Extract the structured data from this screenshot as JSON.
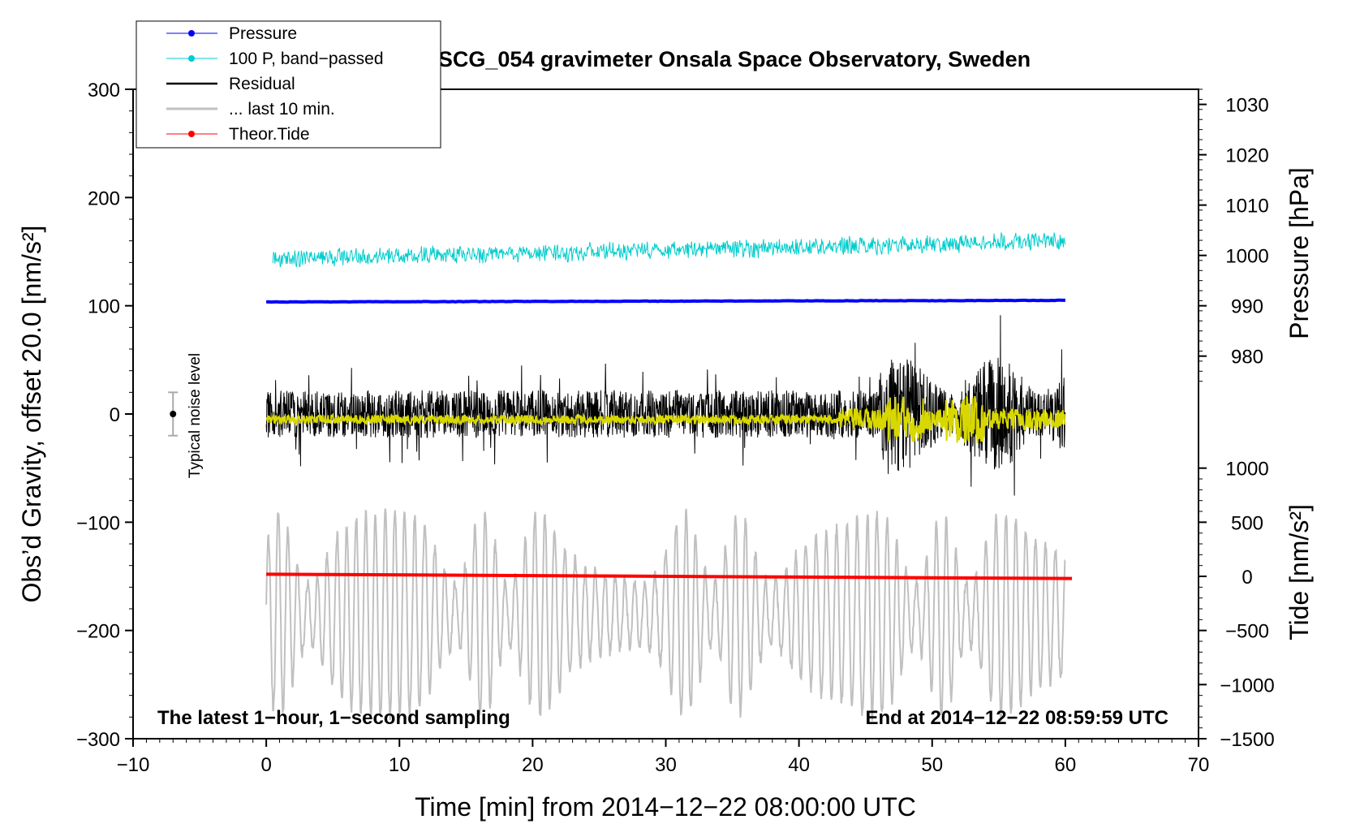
{
  "chart_data": {
    "type": "line",
    "title": "SCG_054 gravimeter Onsala Space Observatory, Sweden",
    "xlabel": "Time [min] from 2014−12−22 08:00:00 UTC",
    "ylabel_left": "Obs’d Gravity, offset 20.0 [nm/s²]",
    "ylabel_right_pressure": "Pressure [hPa]",
    "ylabel_right_tide": "Tide [nm/s²]",
    "xlim": [
      -10,
      70
    ],
    "ylim_left": [
      -300,
      300
    ],
    "xticks": [
      "−10",
      "0",
      "10",
      "20",
      "30",
      "40",
      "50",
      "60",
      "70"
    ],
    "yticks_left": [
      "−300",
      "−200",
      "−100",
      "0",
      "100",
      "200",
      "300"
    ],
    "yticks_pressure": [
      "980",
      "990",
      "1000",
      "1010",
      "1020",
      "1030"
    ],
    "yticks_tide": [
      "−1500",
      "−1000",
      "−500",
      "0",
      "500",
      "1000"
    ],
    "annotations": {
      "left": "The latest 1−hour, 1−second sampling",
      "right": "End at 2014−12−22 08:59:59 UTC",
      "noise": "Typical noise level"
    },
    "legend": [
      {
        "label": "Pressure",
        "color": "#0000ff",
        "marker": true
      },
      {
        "label": "100 P, band−passed",
        "color": "#00cccc",
        "marker": true
      },
      {
        "label": "Residual",
        "color": "#000000",
        "marker": false
      },
      {
        "label": "... last 10 min.",
        "color": "#c0c0c0",
        "marker": false
      },
      {
        "label": "Theor.Tide",
        "color": "#ff0000",
        "marker": true
      }
    ],
    "series": [
      {
        "name": "Pressure",
        "axis": "left_equiv",
        "color": "#0000ff",
        "start": 103.5,
        "end": 105,
        "x_range": [
          0,
          60
        ]
      },
      {
        "name": "100 P, band-passed",
        "axis": "left_equiv",
        "color": "#00cccc",
        "base_start": 143,
        "base_end": 160,
        "noise_amp": 8,
        "x_range": [
          0.5,
          60
        ]
      },
      {
        "name": "Residual",
        "axis": "left",
        "color": "#000000",
        "center": 0,
        "noise_amp": 22,
        "burst_amp": 55,
        "burst_x": [
          46,
          60
        ],
        "x_range": [
          0,
          60
        ]
      },
      {
        "name": "Residual smoothed",
        "axis": "left",
        "color": "#d8d800",
        "center": -5,
        "noise_amp": 4,
        "burst_amp": 22,
        "burst_x": [
          46,
          54
        ],
        "x_range": [
          0,
          60
        ]
      },
      {
        "name": "... last 10 min.",
        "axis": "left",
        "color": "#c0c0c0",
        "center": -185,
        "amp_min": 30,
        "amp_max": 95,
        "x_range": [
          0,
          60
        ]
      },
      {
        "name": "Theor.Tide",
        "axis": "left_equiv",
        "color": "#ff0000",
        "start": -148,
        "end": -152,
        "x_range": [
          0,
          60.5
        ]
      }
    ],
    "noise_bar": {
      "x": -7,
      "low": -20,
      "high": 20,
      "center": 0
    }
  }
}
